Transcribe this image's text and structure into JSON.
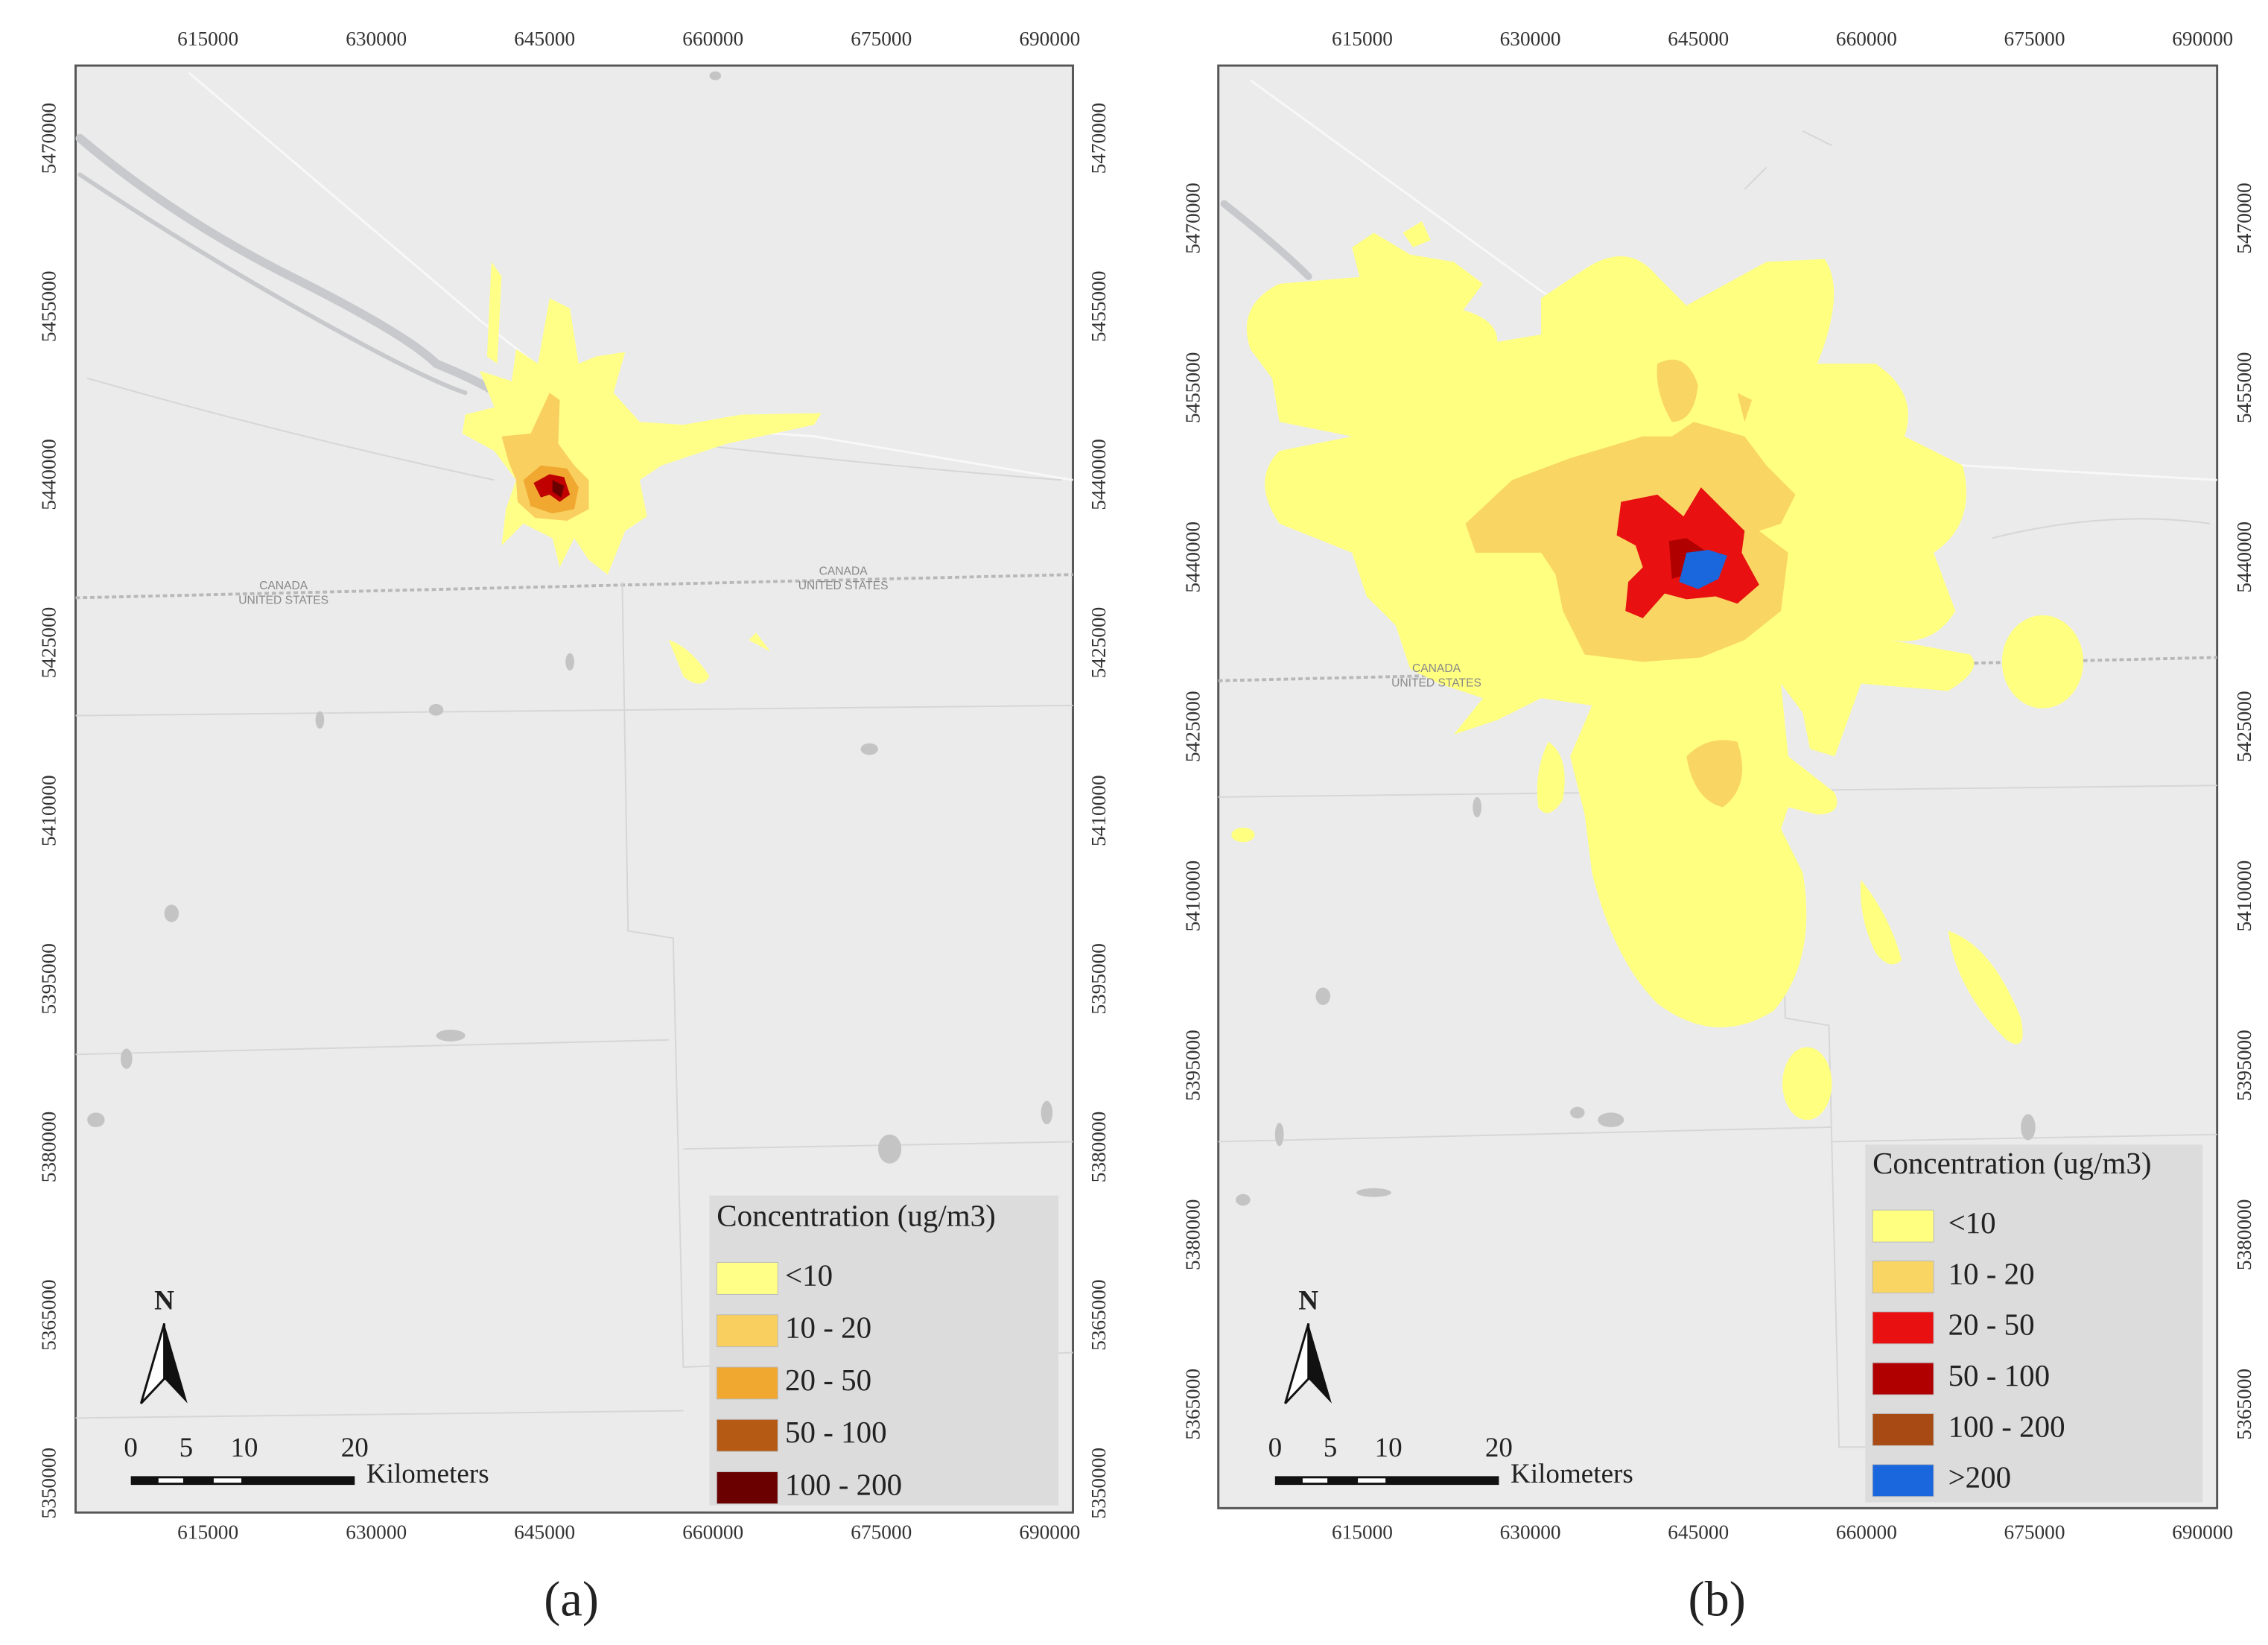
{
  "panels": [
    {
      "label": "(a)",
      "x_ticks": [
        "615000",
        "630000",
        "645000",
        "660000",
        "675000",
        "690000"
      ],
      "y_ticks": [
        "5470000",
        "5455000",
        "5440000",
        "5425000",
        "5410000",
        "5395000",
        "5380000",
        "5365000",
        "5350000"
      ],
      "country_labels": [
        {
          "north": "CANADA",
          "south": "UNITED STATES"
        },
        {
          "north": "CANADA",
          "south": "UNITED STATES"
        }
      ],
      "legend": {
        "title": "Concentration (ug/m3)",
        "items": [
          {
            "label": "<10",
            "color": "#ffff88"
          },
          {
            "label": "10 - 20",
            "color": "#f9cf60"
          },
          {
            "label": "20 - 50",
            "color": "#f0a830"
          },
          {
            "label": "50 - 100",
            "color": "#b45a14"
          },
          {
            "label": "100 - 200",
            "color": "#6b0000"
          }
        ]
      },
      "scale_bar": {
        "labels": [
          "0",
          "5",
          "10",
          "20"
        ],
        "unit": "Kilometers"
      },
      "north": "N"
    },
    {
      "label": "(b)",
      "x_ticks": [
        "615000",
        "630000",
        "645000",
        "660000",
        "675000",
        "690000"
      ],
      "y_ticks": [
        "5470000",
        "5455000",
        "5440000",
        "5425000",
        "5410000",
        "5395000",
        "5380000",
        "5365000"
      ],
      "country_labels": [
        {
          "north": "CANADA",
          "south": "UNITED STATES"
        }
      ],
      "legend": {
        "title": "Concentration (ug/m3)",
        "items": [
          {
            "label": "<10",
            "color": "#ffff80"
          },
          {
            "label": "10 - 20",
            "color": "#f9d564"
          },
          {
            "label": "20 - 50",
            "color": "#e81010"
          },
          {
            "label": "50 - 100",
            "color": "#b00000"
          },
          {
            "label": "100 - 200",
            "color": "#a84a14"
          },
          {
            "label": ">200",
            "color": "#1a66dd"
          }
        ]
      },
      "scale_bar": {
        "labels": [
          "0",
          "5",
          "10",
          "20"
        ],
        "unit": "Kilometers"
      },
      "north": "N"
    }
  ]
}
